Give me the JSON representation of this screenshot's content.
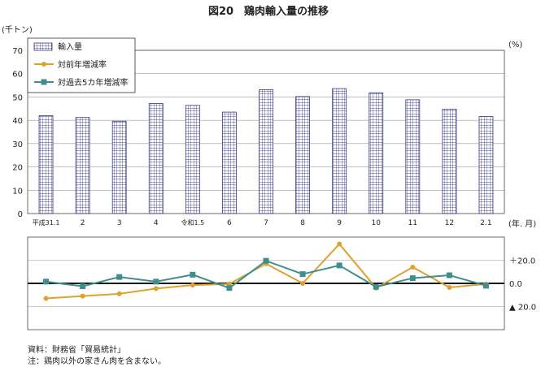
{
  "chart_data": [
    {
      "type": "bar",
      "title": "図20　鶏肉輸入量の推移",
      "ylabel": "(千トン)",
      "xlabel": "(年. 月)",
      "ylim": [
        0,
        70
      ],
      "yticks": [
        0,
        10,
        20,
        30,
        40,
        50,
        60,
        70
      ],
      "categories": [
        "平成31.1",
        "2",
        "3",
        "4",
        "令和1.5",
        "6",
        "7",
        "8",
        "9",
        "10",
        "11",
        "12",
        "2.1"
      ],
      "series": [
        {
          "name": "輸入量",
          "values": [
            42.0,
            41.2,
            39.6,
            47.2,
            46.4,
            43.5,
            53.1,
            50.2,
            53.6,
            51.8,
            48.8,
            44.8,
            41.6
          ]
        }
      ],
      "legend": "top-left",
      "grid": true
    },
    {
      "type": "line",
      "ylabel": "(%)",
      "ylim": [
        -40,
        40
      ],
      "yticks": [
        20,
        0,
        -20
      ],
      "ytick_labels": [
        "＋20.0",
        "0.0",
        "▲ 20.0"
      ],
      "categories": [
        "平成31.1",
        "2",
        "3",
        "4",
        "令和1.5",
        "6",
        "7",
        "8",
        "9",
        "10",
        "11",
        "12",
        "2.1"
      ],
      "series": [
        {
          "name": "対前年増減率",
          "color": "#e0a030",
          "marker": "circle",
          "values": [
            -13.0,
            -11.0,
            -9.0,
            -4.5,
            -1.5,
            -0.5,
            17.0,
            0.0,
            34.0,
            -4.0,
            14.0,
            -3.5,
            -0.5
          ]
        },
        {
          "name": "対過去5カ年増減率",
          "color": "#3f8d8d",
          "marker": "square",
          "values": [
            1.5,
            -2.5,
            5.5,
            1.5,
            7.5,
            -4.0,
            19.5,
            8.0,
            15.5,
            -3.0,
            4.5,
            7.0,
            -2.0
          ]
        }
      ],
      "grid": true
    }
  ],
  "notes": {
    "source": "資料：財務省「貿易統計」",
    "note": "注：鶏肉以外の家きん肉を含まない。"
  }
}
